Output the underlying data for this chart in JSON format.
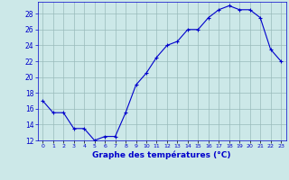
{
  "hours": [
    0,
    1,
    2,
    3,
    4,
    5,
    6,
    7,
    8,
    9,
    10,
    11,
    12,
    13,
    14,
    15,
    16,
    17,
    18,
    19,
    20,
    21,
    22,
    23
  ],
  "temps": [
    17.0,
    15.5,
    15.5,
    13.5,
    13.5,
    12.0,
    12.5,
    12.5,
    15.5,
    19.0,
    20.5,
    22.5,
    24.0,
    24.5,
    26.0,
    26.0,
    27.5,
    28.5,
    29.0,
    28.5,
    28.5,
    27.5,
    23.5,
    22.0
  ],
  "line_color": "#0000cc",
  "marker": "+",
  "bg_color": "#cce8e8",
  "grid_color": "#99bbbb",
  "xlabel": "Graphe des températures (°C)",
  "xlabel_color": "#0000cc",
  "tick_color": "#0000cc",
  "ylim_min": 12,
  "ylim_max": 29,
  "yticks": [
    12,
    14,
    16,
    18,
    20,
    22,
    24,
    26,
    28
  ],
  "xlim_min": -0.5,
  "xlim_max": 23.5
}
